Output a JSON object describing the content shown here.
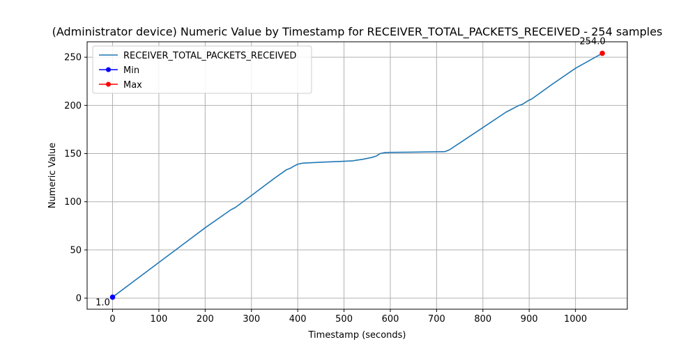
{
  "chart_data": {
    "type": "line",
    "title": "(Administrator device) Numeric Value by Timestamp for RECEIVER_TOTAL_PACKETS_RECEIVED - 254 samples",
    "xlabel": "Timestamp (seconds)",
    "ylabel": "Numeric Value",
    "xlim": [
      -55,
      1112
    ],
    "ylim": [
      -11.5,
      266
    ],
    "xticks": [
      0,
      100,
      200,
      300,
      400,
      500,
      600,
      700,
      800,
      900,
      1000
    ],
    "yticks": [
      0,
      50,
      100,
      150,
      200,
      250
    ],
    "grid": true,
    "legend_position": "upper-left",
    "series": [
      {
        "name": "RECEIVER_TOTAL_PACKETS_RECEIVED",
        "color": "#1f77b4",
        "x": [
          0,
          50,
          100,
          150,
          200,
          255,
          265,
          300,
          350,
          375,
          385,
          390,
          400,
          405,
          410,
          450,
          500,
          520,
          525,
          540,
          560,
          570,
          578,
          588,
          600,
          650,
          718,
          728,
          750,
          800,
          850,
          858,
          878,
          885,
          898,
          905,
          950,
          1000,
          1058
        ],
        "y": [
          1,
          19,
          37,
          55,
          73,
          91.5,
          94,
          106.5,
          124.5,
          133,
          135,
          136.5,
          139,
          139.5,
          140,
          141,
          142,
          142.5,
          143,
          144,
          146,
          147.5,
          150,
          151,
          151.2,
          151.5,
          152,
          154,
          161,
          177,
          193,
          195,
          200,
          201,
          205,
          206.5,
          222,
          238.5,
          254
        ]
      },
      {
        "name": "Min",
        "color": "#0000ff",
        "x": [
          0
        ],
        "y": [
          1
        ],
        "label": "1.0"
      },
      {
        "name": "Max",
        "color": "#ff0000",
        "x": [
          1058
        ],
        "y": [
          254
        ],
        "label": "254.0"
      }
    ]
  }
}
